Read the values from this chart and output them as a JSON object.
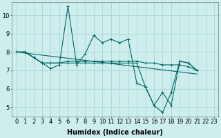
{
  "xlabel": "Humidex (Indice chaleur)",
  "background_color": "#cdeeed",
  "grid_color": "#aad4d4",
  "line_color": "#006666",
  "x_min": -0.5,
  "x_max": 23.5,
  "y_min": 4.5,
  "y_max": 10.7,
  "series": [
    {
      "x": [
        0,
        1,
        2,
        3,
        4,
        5,
        6,
        7,
        8,
        9,
        10,
        11,
        12,
        13,
        14,
        15,
        16,
        17,
        18,
        19,
        20,
        21
      ],
      "y": [
        8.0,
        8.0,
        7.7,
        7.4,
        7.1,
        7.3,
        10.5,
        7.3,
        7.9,
        8.9,
        8.5,
        8.7,
        8.5,
        8.7,
        6.3,
        6.1,
        5.1,
        5.8,
        5.1,
        7.5,
        7.4,
        7.0
      ]
    },
    {
      "x": [
        0,
        1,
        2,
        3,
        4,
        5,
        6,
        7,
        8,
        9,
        10,
        11,
        12,
        13,
        14,
        15,
        16,
        17,
        18,
        19,
        20,
        21
      ],
      "y": [
        8.0,
        8.0,
        7.7,
        7.4,
        7.4,
        7.4,
        7.5,
        7.5,
        7.5,
        7.5,
        7.5,
        7.5,
        7.5,
        7.5,
        7.5,
        7.4,
        7.4,
        7.3,
        7.3,
        7.3,
        7.2,
        7.0
      ]
    },
    {
      "x": [
        0,
        21
      ],
      "y": [
        8.0,
        6.8
      ]
    },
    {
      "x": [
        0,
        1,
        2,
        3,
        4,
        5,
        6,
        7,
        8,
        9,
        10,
        11,
        12,
        13,
        14,
        15,
        16,
        17,
        18,
        19,
        20,
        21
      ],
      "y": [
        8.0,
        8.0,
        7.7,
        7.4,
        7.4,
        7.4,
        7.4,
        7.4,
        7.4,
        7.4,
        7.4,
        7.4,
        7.4,
        7.4,
        7.4,
        6.1,
        5.1,
        4.7,
        5.8,
        7.5,
        7.4,
        7.0
      ]
    }
  ],
  "yticks": [
    5,
    6,
    7,
    8,
    9,
    10
  ],
  "xticks": [
    0,
    1,
    2,
    3,
    4,
    5,
    6,
    7,
    8,
    9,
    10,
    11,
    12,
    13,
    14,
    15,
    16,
    17,
    18,
    19,
    20,
    21,
    22,
    23
  ],
  "marker": "+",
  "markersize": 3,
  "linewidth": 0.8,
  "xlabel_fontsize": 7,
  "tick_fontsize": 6
}
